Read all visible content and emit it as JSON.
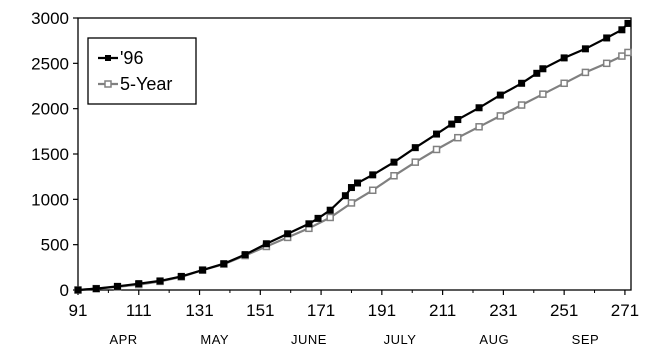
{
  "chart_data": {
    "type": "line",
    "title": "",
    "xlabel": "",
    "ylabel": "",
    "xlim": [
      91,
      273
    ],
    "ylim": [
      0,
      3000
    ],
    "grid": false,
    "legend_position": "top-left",
    "x_ticks": [
      91,
      111,
      131,
      151,
      171,
      191,
      211,
      231,
      251,
      271
    ],
    "y_ticks": [
      0,
      500,
      1000,
      1500,
      2000,
      2500,
      3000
    ],
    "month_labels": [
      {
        "label": "APR",
        "x": 106
      },
      {
        "label": "MAY",
        "x": 136
      },
      {
        "label": "JUNE",
        "x": 167
      },
      {
        "label": "JULY",
        "x": 197
      },
      {
        "label": "AUG",
        "x": 228
      },
      {
        "label": "SEP",
        "x": 258
      }
    ],
    "series": [
      {
        "name": "'96",
        "color": "#000000",
        "marker": "filled-square",
        "points": [
          [
            91,
            0
          ],
          [
            97,
            15
          ],
          [
            104,
            40
          ],
          [
            111,
            70
          ],
          [
            118,
            100
          ],
          [
            125,
            150
          ],
          [
            132,
            220
          ],
          [
            139,
            290
          ],
          [
            146,
            390
          ],
          [
            153,
            510
          ],
          [
            160,
            620
          ],
          [
            167,
            730
          ],
          [
            170,
            790
          ],
          [
            174,
            880
          ],
          [
            179,
            1040
          ],
          [
            181,
            1130
          ],
          [
            183,
            1180
          ],
          [
            188,
            1270
          ],
          [
            195,
            1410
          ],
          [
            202,
            1570
          ],
          [
            209,
            1720
          ],
          [
            214,
            1830
          ],
          [
            216,
            1880
          ],
          [
            223,
            2010
          ],
          [
            230,
            2150
          ],
          [
            237,
            2280
          ],
          [
            242,
            2390
          ],
          [
            244,
            2440
          ],
          [
            251,
            2560
          ],
          [
            258,
            2660
          ],
          [
            265,
            2780
          ],
          [
            270,
            2870
          ],
          [
            272,
            2940
          ]
        ]
      },
      {
        "name": "5-Year",
        "color": "#808080",
        "marker": "hollow-square",
        "points": [
          [
            91,
            0
          ],
          [
            97,
            15
          ],
          [
            104,
            35
          ],
          [
            111,
            60
          ],
          [
            118,
            95
          ],
          [
            125,
            145
          ],
          [
            132,
            220
          ],
          [
            139,
            285
          ],
          [
            146,
            380
          ],
          [
            153,
            480
          ],
          [
            160,
            580
          ],
          [
            167,
            680
          ],
          [
            174,
            800
          ],
          [
            181,
            960
          ],
          [
            188,
            1100
          ],
          [
            195,
            1260
          ],
          [
            202,
            1410
          ],
          [
            209,
            1550
          ],
          [
            216,
            1680
          ],
          [
            223,
            1800
          ],
          [
            230,
            1920
          ],
          [
            237,
            2040
          ],
          [
            244,
            2160
          ],
          [
            251,
            2280
          ],
          [
            258,
            2400
          ],
          [
            265,
            2500
          ],
          [
            270,
            2580
          ],
          [
            272,
            2620
          ]
        ]
      }
    ]
  }
}
